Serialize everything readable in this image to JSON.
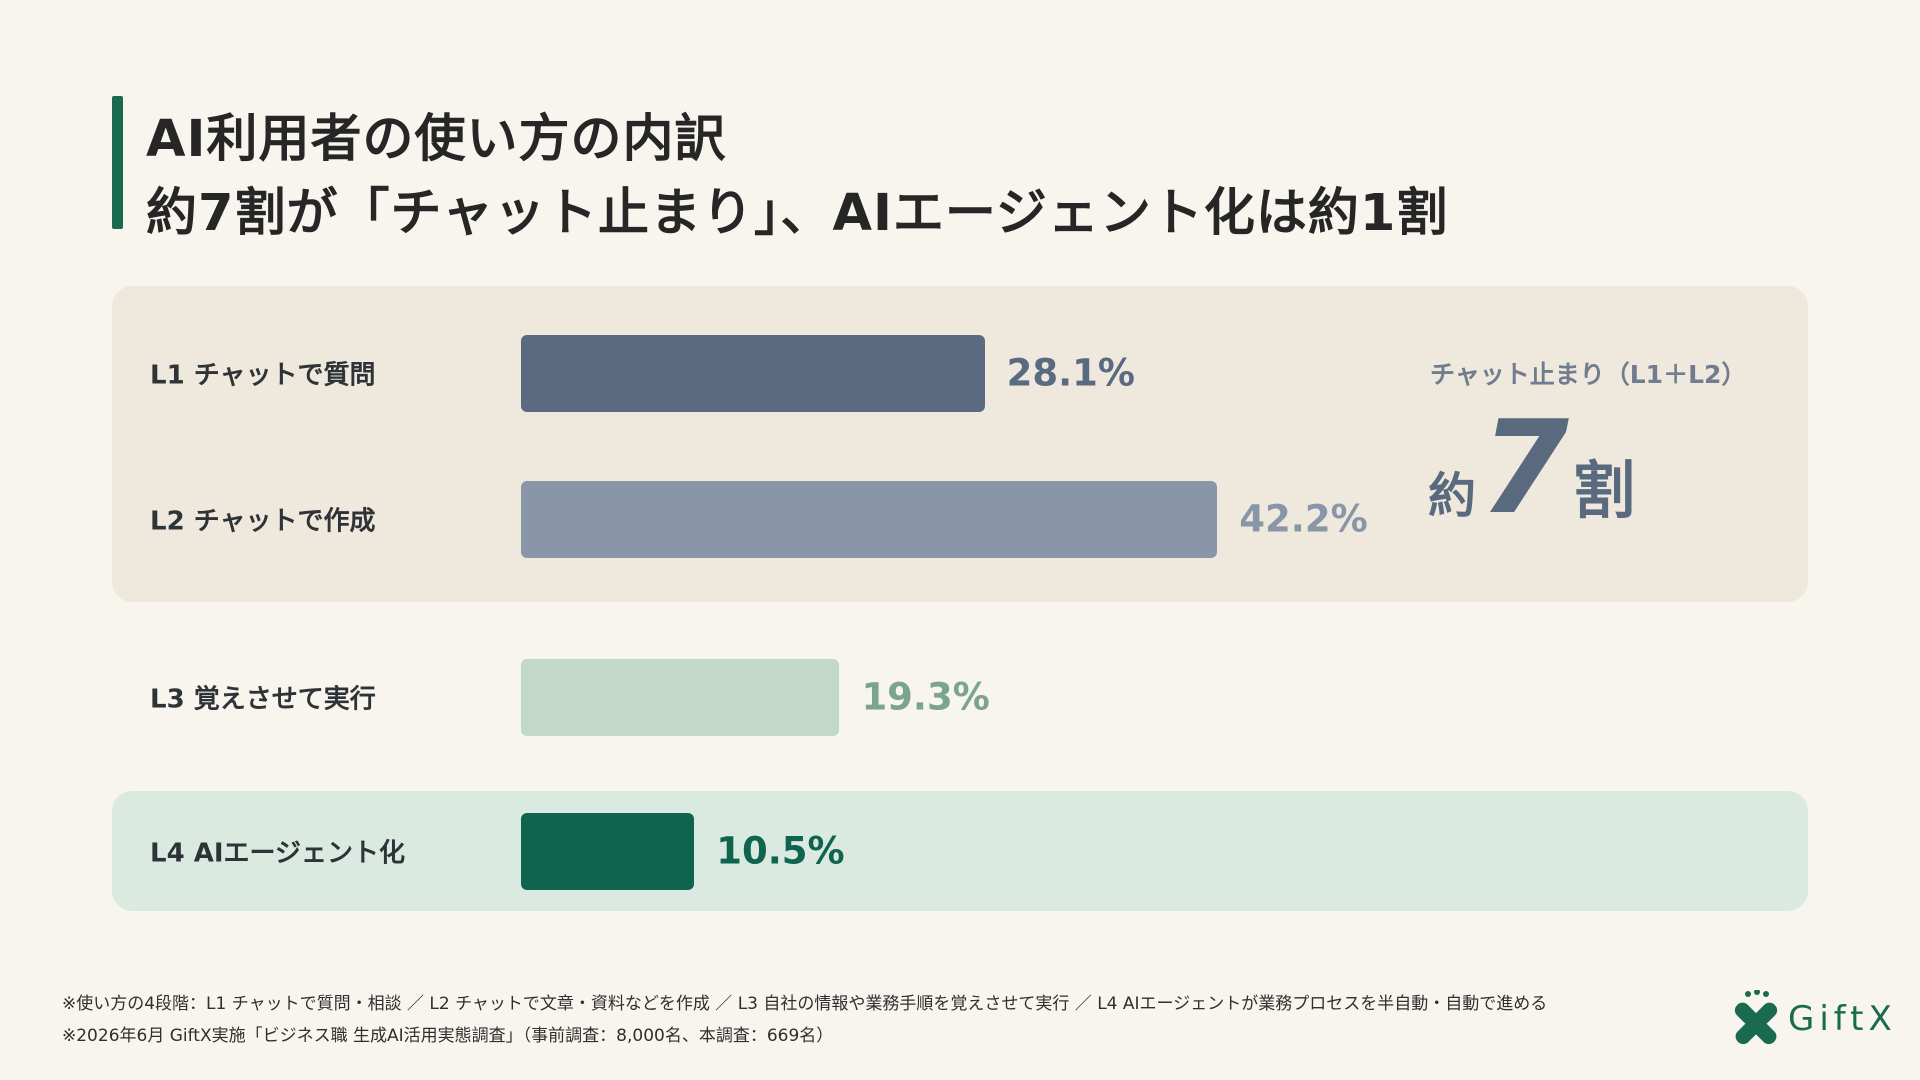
{
  "title": {
    "line1": "AI利用者の使い方の内訳",
    "line2": "約7割が「チャット止まり」、AIエージェント化は約1割"
  },
  "chart_data": {
    "type": "bar",
    "orientation": "horizontal",
    "categories": [
      "L1 チャットで質問",
      "L2 チャットで作成",
      "L3 覚えさせて実行",
      "L4 AIエージェント化"
    ],
    "values": [
      28.1,
      42.2,
      19.3,
      10.5
    ],
    "value_labels": [
      "28.1%",
      "42.2%",
      "19.3%",
      "10.5%"
    ],
    "bar_colors": [
      "#5a6a80",
      "#8896a8",
      "#c2d8cb",
      "#0f6450"
    ],
    "label_colors": [
      "#5a6a80",
      "#8896a8",
      "#7aa391",
      "#0f6450"
    ],
    "grid": false,
    "legend": "none"
  },
  "summary": {
    "label": "チャット止まり（L1＋L2）",
    "prefix": "約",
    "number": "7",
    "suffix": "割"
  },
  "notes": {
    "line1": "※使い方の4段階：L1 チャットで質問・相談 ／ L2 チャットで文章・資料などを作成 ／ L3 自社の情報や業務手順を覚えさせて実行 ／ L4 AIエージェントが業務プロセスを半自動・自動で進める",
    "line2": "※2026年6月 GiftX実施「ビジネス職 生成AI活用実態調査」（事前調査：8,000名、本調査：669名）"
  },
  "logo": {
    "text": "GiftX"
  },
  "colors": {
    "background": "#f8f5ee",
    "accent": "#1a6a50",
    "chat_panel": "#efe8dc",
    "agent_panel": "#dbeae0"
  }
}
